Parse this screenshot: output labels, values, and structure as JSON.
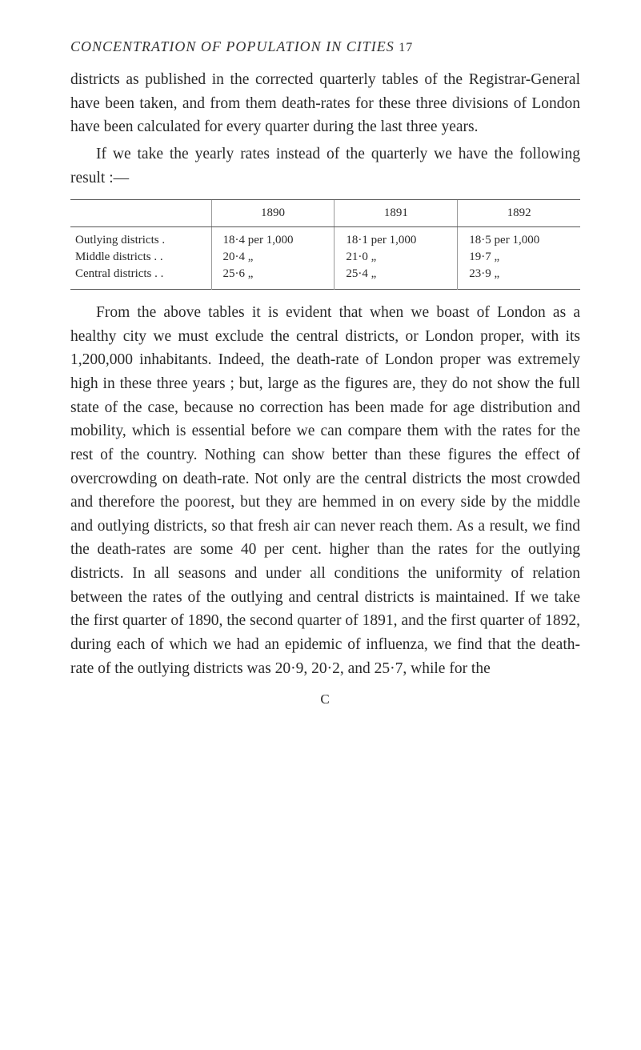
{
  "header": {
    "title": "CONCENTRATION OF POPULATION IN CITIES",
    "page": "17"
  },
  "para1": "districts as published in the corrected quarterly tables of the Registrar-General have been taken, and from them death-rates for these three divisions of London have been calculated for every quarter during the last three years.",
  "para2": "If we take the yearly rates instead of the quarterly we have the following result :—",
  "table": {
    "columns": [
      "",
      "1890",
      "1891",
      "1892"
    ],
    "rows": [
      {
        "label": "Outlying districts  .",
        "c0": "18·4 per 1,000",
        "c1": "18·1 per 1,000",
        "c2": "18·5 per 1,000"
      },
      {
        "label": "Middle districts .   .",
        "c0": "20·4      „",
        "c1": "21·0      „",
        "c2": "19·7      „"
      },
      {
        "label": "Central districts .   .",
        "c0": "25·6      „",
        "c1": "25·4      „",
        "c2": "23·9      „"
      }
    ],
    "header_fontsize": 15,
    "body_fontsize": 15,
    "border_color": "#555555"
  },
  "para3": "From the above tables it is evident that when we boast of London as a healthy city we must exclude the central districts, or London proper, with its 1,200,000 inhabitants. Indeed, the death-rate of London proper was extremely high in these three years ; but, large as the figures are, they do not show the full state of the case, because no correction has been made for age distribution and mobility, which is essential before we can compare them with the rates for the rest of the country. Nothing can show better than these figures the effect of overcrowding on death-rate. Not only are the central districts the most crowded and therefore the poorest, but they are hemmed in on every side by the middle and outlying districts, so that fresh air can never reach them. As a result, we find the death-rates are some 40 per cent. higher than the rates for the outlying districts. In all seasons and under all conditions the uniformity of relation between the rates of the outlying and central districts is maintained. If we take the first quarter of 1890, the second quarter of 1891, and the first quarter of 1892, during each of which we had an epidemic of influenza, we find that the death-rate of the outlying districts was 20·9, 20·2, and 25·7, while for the",
  "footer": "C",
  "colors": {
    "background": "#ffffff",
    "text": "#2a2a2a",
    "rule": "#555555"
  },
  "typography": {
    "body_fontsize": 19.5,
    "header_fontsize": 18,
    "table_fontsize": 15,
    "line_height": 1.52
  }
}
